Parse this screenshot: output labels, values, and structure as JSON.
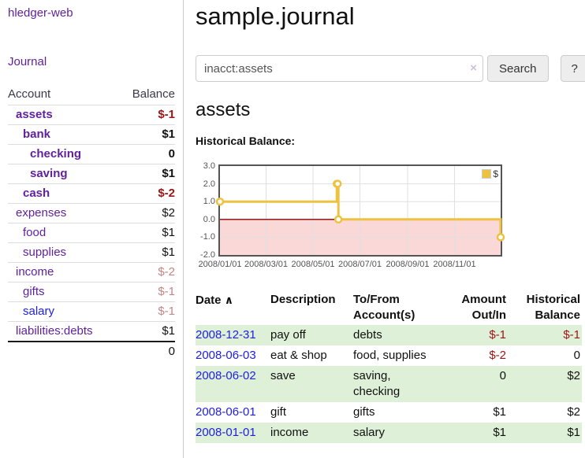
{
  "brand": "hledger-web",
  "nav": {
    "journal": "Journal"
  },
  "sidebar": {
    "headers": {
      "account": "Account",
      "balance": "Balance"
    },
    "accounts": [
      {
        "name": "assets",
        "balance": "$-1",
        "level": 0,
        "matched": true,
        "balance_color": "neg_strong"
      },
      {
        "name": "bank",
        "balance": "$1",
        "level": 1,
        "matched": true,
        "balance_color": "pos"
      },
      {
        "name": "checking",
        "balance": "0",
        "level": 2,
        "matched": true,
        "balance_color": "pos"
      },
      {
        "name": "saving",
        "balance": "$1",
        "level": 2,
        "matched": true,
        "balance_color": "pos"
      },
      {
        "name": "cash",
        "balance": "$-2",
        "level": 1,
        "matched": true,
        "balance_color": "neg_strong"
      },
      {
        "name": "expenses",
        "balance": "$2",
        "level": 0,
        "matched": false,
        "balance_color": "pos"
      },
      {
        "name": "food",
        "balance": "$1",
        "level": 1,
        "matched": false,
        "balance_color": "pos"
      },
      {
        "name": "supplies",
        "balance": "$1",
        "level": 1,
        "matched": false,
        "balance_color": "pos"
      },
      {
        "name": "income",
        "balance": "$-2",
        "level": 0,
        "matched": false,
        "balance_color": "neg_soft"
      },
      {
        "name": "gifts",
        "balance": "$-1",
        "level": 1,
        "matched": false,
        "balance_color": "neg_soft"
      },
      {
        "name": "salary",
        "balance": "$-1",
        "level": 1,
        "matched": false,
        "balance_color": "neg_soft",
        "link_color": "blue"
      },
      {
        "name": "liabilities:debts",
        "balance": "$1",
        "level": 0,
        "matched": false,
        "balance_color": "pos"
      }
    ],
    "total": "0"
  },
  "header": {
    "title": "sample.journal"
  },
  "search": {
    "value": "inacct:assets",
    "clear_icon": "×",
    "search_button": "Search",
    "help_button": "?"
  },
  "account_page": {
    "heading": "assets"
  },
  "chart_data": {
    "type": "line",
    "style": "steps",
    "title": "Historical Balance:",
    "series": [
      {
        "name": "$",
        "color": "#EDC240",
        "points": [
          {
            "date": "2008-01-01",
            "value": 1
          },
          {
            "date": "2008-06-01",
            "value": 2
          },
          {
            "date": "2008-06-02",
            "value": 2
          },
          {
            "date": "2008-06-03",
            "value": 0
          },
          {
            "date": "2008-12-31",
            "value": -1
          }
        ]
      }
    ],
    "x_ticks": [
      "2008/01/01",
      "2008/03/01",
      "2008/05/01",
      "2008/07/01",
      "2008/09/01",
      "2008/11/01"
    ],
    "y_ticks": [
      3.0,
      2.0,
      1.0,
      0.0,
      -1.0,
      -2.0
    ],
    "xlim": [
      "2008-01-01",
      "2008-12-31"
    ],
    "ylim": [
      -2,
      3
    ],
    "legend": {
      "label": "$",
      "position": "top-right"
    },
    "grid": true,
    "zero_line_color": "#8B0000",
    "negative_region_color": "#FBD8D8"
  },
  "register": {
    "headers": {
      "date": "Date",
      "sort_icon": "∧",
      "description": "Description",
      "accounts": "To/From Account(s)",
      "amount": "Amount Out/In",
      "balance": "Historical Balance"
    },
    "rows": [
      {
        "date": "2008-12-31",
        "description": "pay off",
        "accounts": "debts",
        "amount": "$-1",
        "amount_neg": true,
        "balance": "$-1",
        "balance_neg": true
      },
      {
        "date": "2008-06-03",
        "description": "eat & shop",
        "accounts": "food, supplies",
        "amount": "$-2",
        "amount_neg": true,
        "balance": "0",
        "balance_neg": false
      },
      {
        "date": "2008-06-02",
        "description": "save",
        "accounts": "saving, checking",
        "amount": "0",
        "amount_neg": false,
        "balance": "$2",
        "balance_neg": false
      },
      {
        "date": "2008-06-01",
        "description": "gift",
        "accounts": "gifts",
        "amount": "$1",
        "amount_neg": false,
        "balance": "$2",
        "balance_neg": false
      },
      {
        "date": "2008-01-01",
        "description": "income",
        "accounts": "salary",
        "amount": "$1",
        "amount_neg": false,
        "balance": "$1",
        "balance_neg": false
      }
    ]
  }
}
